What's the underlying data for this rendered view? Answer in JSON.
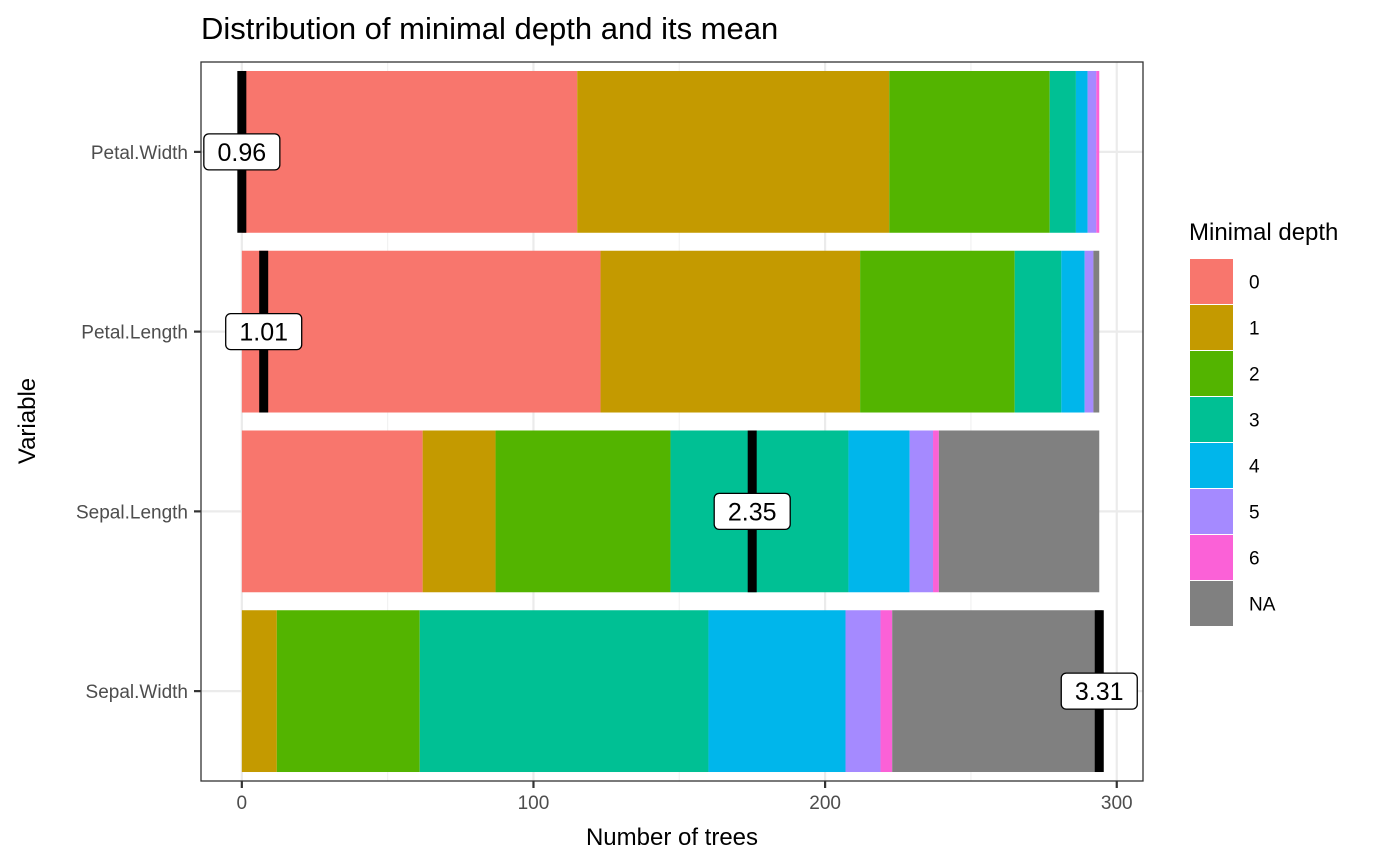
{
  "chart_data": {
    "type": "bar",
    "orientation": "horizontal",
    "stacked": true,
    "title": "Distribution of minimal depth and its mean",
    "xlabel": "Number of trees",
    "ylabel": "Variable",
    "xlim": [
      -14,
      309
    ],
    "x_ticks": [
      0,
      100,
      200,
      300
    ],
    "x_tick_labels": [
      "0",
      "100",
      "200",
      "300"
    ],
    "grid": true,
    "legend_title": "Minimal depth",
    "legend_position": "right",
    "levels": [
      {
        "label": "0",
        "color": "#F8766D"
      },
      {
        "label": "1",
        "color": "#C49A00"
      },
      {
        "label": "2",
        "color": "#53B400"
      },
      {
        "label": "3",
        "color": "#00C094"
      },
      {
        "label": "4",
        "color": "#00B6EB"
      },
      {
        "label": "5",
        "color": "#A58AFF"
      },
      {
        "label": "6",
        "color": "#FB61D7"
      },
      {
        "label": "NA",
        "color": "#808080"
      }
    ],
    "categories": [
      "Petal.Width",
      "Petal.Length",
      "Sepal.Length",
      "Sepal.Width"
    ],
    "series": [
      {
        "name": "0",
        "values": [
          115,
          123,
          62,
          0
        ]
      },
      {
        "name": "1",
        "values": [
          107,
          89,
          25,
          12
        ]
      },
      {
        "name": "2",
        "values": [
          55,
          53,
          60,
          49
        ]
      },
      {
        "name": "3",
        "values": [
          9,
          16,
          61,
          99
        ]
      },
      {
        "name": "4",
        "values": [
          4,
          8,
          21,
          47
        ]
      },
      {
        "name": "5",
        "values": [
          3,
          3,
          8,
          12
        ]
      },
      {
        "name": "6",
        "values": [
          1,
          0,
          2,
          4
        ]
      },
      {
        "name": "NA",
        "values": [
          0,
          2,
          55,
          72
        ]
      }
    ],
    "means": [
      {
        "variable": "Petal.Width",
        "label": "0.96",
        "x": 0
      },
      {
        "variable": "Petal.Length",
        "label": "1.01",
        "x": 7.5
      },
      {
        "variable": "Sepal.Length",
        "label": "2.35",
        "x": 175
      },
      {
        "variable": "Sepal.Width",
        "label": "3.31",
        "x": 294
      }
    ]
  }
}
